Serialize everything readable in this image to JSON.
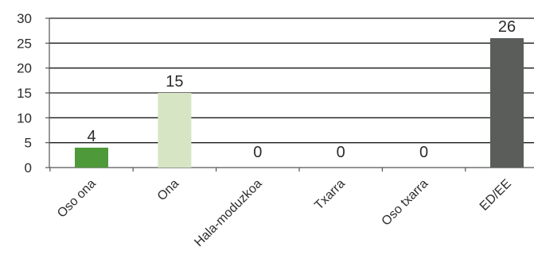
{
  "chart_data": {
    "type": "bar",
    "categories": [
      "Oso ona",
      "Ona",
      "Hala-moduzkoa",
      "Txarra",
      "Oso txarra",
      "ED/EE"
    ],
    "values": [
      4,
      15,
      0,
      0,
      0,
      26
    ],
    "colors": [
      "#4e9a3a",
      "#d6e6c4",
      "#ffffff",
      "#ffffff",
      "#ffffff",
      "#5a5d5a"
    ],
    "ylim": [
      0,
      30
    ],
    "yticks": [
      0,
      5,
      10,
      15,
      20,
      25,
      30
    ],
    "grid": true,
    "data_labels": true,
    "title": "",
    "xlabel": "",
    "ylabel": ""
  }
}
